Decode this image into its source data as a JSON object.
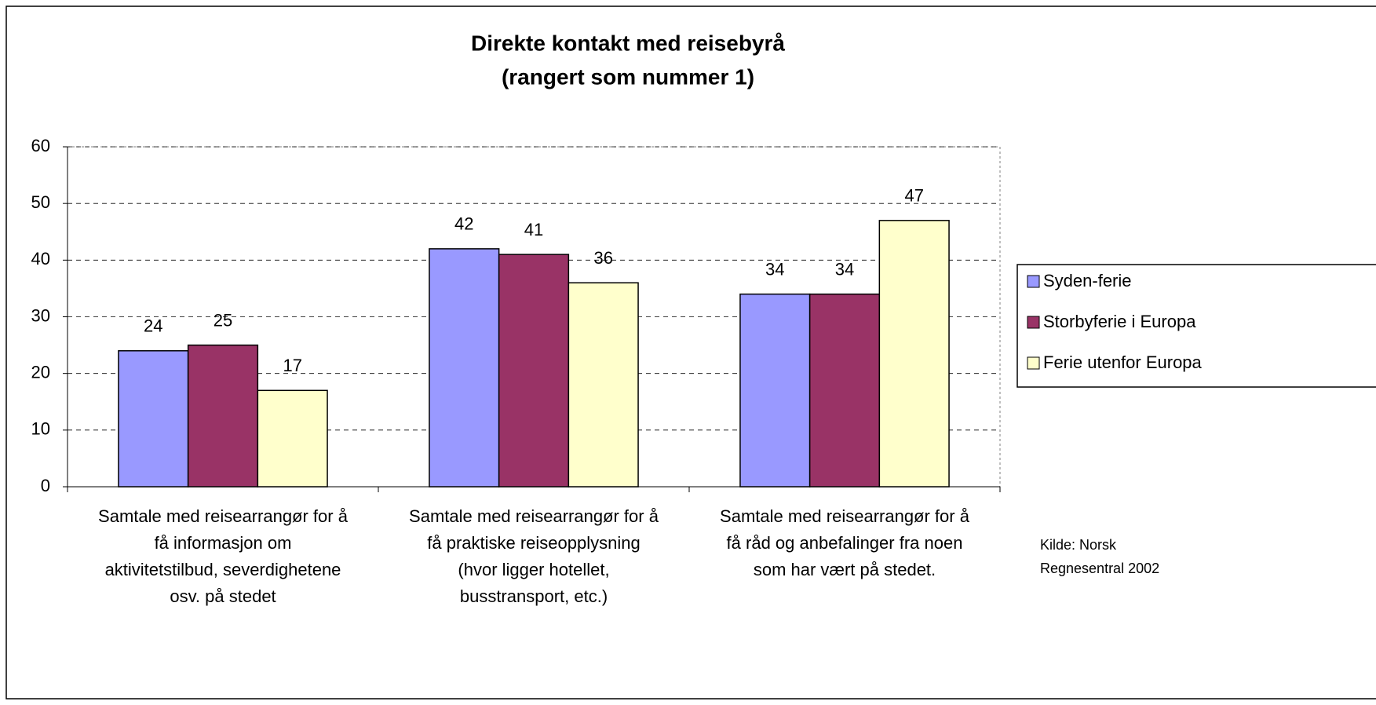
{
  "chart_data": {
    "type": "bar",
    "title": "Direkte kontakt med reisebyrå",
    "subtitle": "(rangert som nummer 1)",
    "categories": [
      [
        "Samtale med reisearrangør for å",
        "få informasjon om",
        "aktivitetstilbud, severdighetene",
        "osv. på stedet"
      ],
      [
        "Samtale med reisearrangør for å",
        "få praktiske reiseopplysning",
        "(hvor ligger hotellet,",
        "busstransport, etc.)"
      ],
      [
        "Samtale med reisearrangør for å",
        "få råd og anbefalinger fra noen",
        "som har vært på stedet."
      ]
    ],
    "series": [
      {
        "name": "Syden-ferie",
        "color": "#9999ff",
        "values": [
          24,
          42,
          34
        ]
      },
      {
        "name": "Storbyferie i Europa",
        "color": "#993366",
        "values": [
          25,
          41,
          34
        ]
      },
      {
        "name": "Ferie utenfor Europa",
        "color": "#ffffcc",
        "values": [
          17,
          36,
          47
        ]
      }
    ],
    "ylim": [
      0,
      60
    ],
    "yticks": [
      0,
      10,
      20,
      30,
      40,
      50,
      60
    ],
    "grid": true,
    "legend": "right",
    "source": [
      "Kilde: Norsk",
      "Regnesentral 2002"
    ]
  }
}
